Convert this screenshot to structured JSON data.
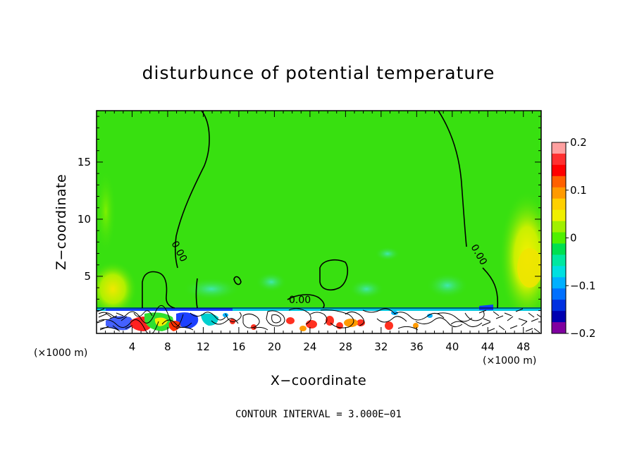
{
  "chart_data": {
    "type": "heatmap",
    "title": "disturbunce of potential temperature",
    "xlabel": "X−coordinate",
    "ylabel": "Z−coordinate",
    "x_unit": "(×1000 m)",
    "y_unit": "(×1000 m)",
    "xlim": [
      0,
      50
    ],
    "ylim": [
      0,
      19.5
    ],
    "x_ticks": [
      4,
      8,
      12,
      16,
      20,
      24,
      28,
      32,
      36,
      40,
      44,
      48
    ],
    "y_ticks": [
      5,
      10,
      15
    ],
    "x_tick_labels": [
      "4",
      "8",
      "12",
      "16",
      "20",
      "24",
      "28",
      "32",
      "36",
      "40",
      "44",
      "48"
    ],
    "y_tick_labels": [
      "5",
      "10",
      "15"
    ],
    "colorbar": {
      "min": -0.2,
      "max": 0.2,
      "ticks": [
        0.2,
        0.1,
        0,
        -0.1,
        -0.2
      ],
      "tick_labels": [
        "0.2",
        "0.1",
        "0",
        "−0.1",
        "−0.2"
      ],
      "colors": [
        "#ffa0a0",
        "#ff3030",
        "#ff0000",
        "#ff6000",
        "#ff9a00",
        "#ffd000",
        "#f0f000",
        "#a0f000",
        "#50f000",
        "#00e050",
        "#00e8a0",
        "#00e0e0",
        "#00b0ff",
        "#0070ff",
        "#0030e0",
        "#0000b0",
        "#8000a0"
      ]
    },
    "contour_labels": [
      "0.00",
      "0.00",
      "0.00"
    ],
    "contour_interval_text": "CONTOUR INTERVAL = 3.000E−01"
  }
}
